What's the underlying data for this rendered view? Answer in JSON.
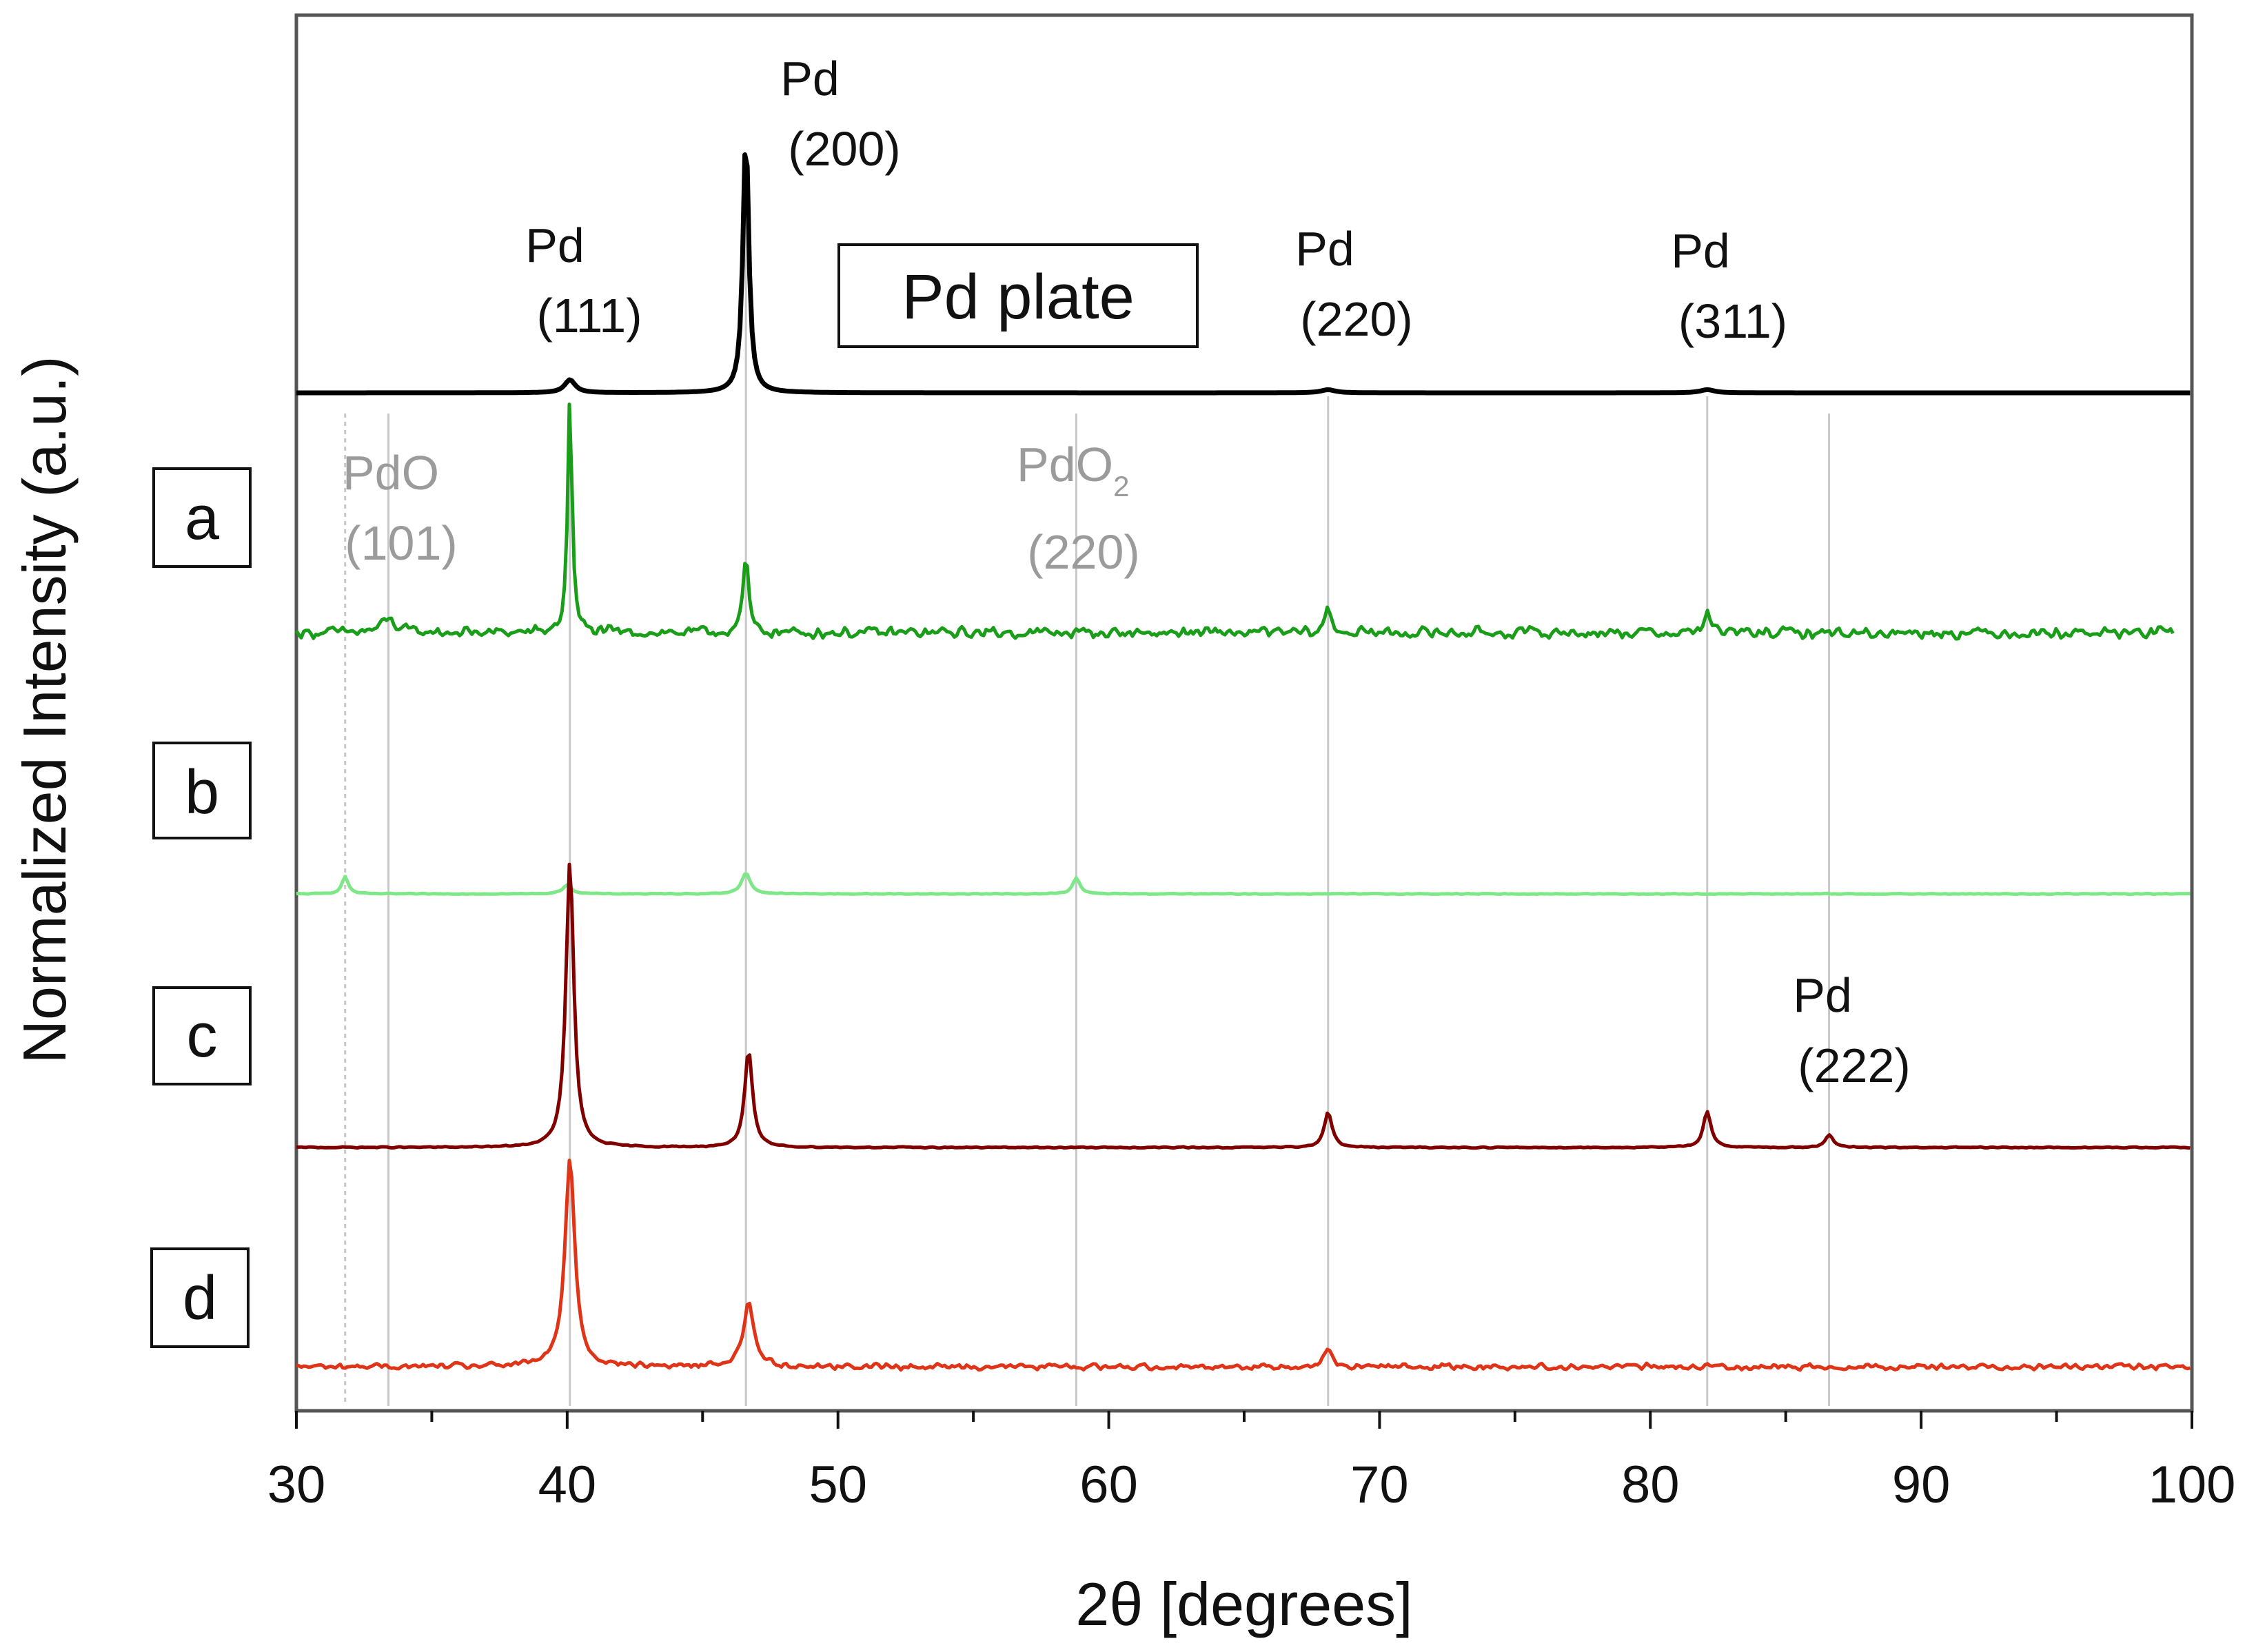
{
  "chart_data": {
    "type": "line",
    "title": "",
    "xlabel": "2θ [degrees]",
    "ylabel": "Normalized Intensity (a.u.)",
    "xlim": [
      30,
      100
    ],
    "xticks": [
      30,
      40,
      50,
      60,
      70,
      80,
      90,
      100
    ],
    "xtick_labels": [
      "30",
      "40",
      "50",
      "60",
      "70",
      "80",
      "90",
      "100"
    ],
    "grid": false,
    "reference_lines": [
      {
        "x": 31.8,
        "style": "dotted"
      },
      {
        "x": 33.4,
        "style": "solid"
      },
      {
        "x": 40.1,
        "style": "solid"
      },
      {
        "x": 46.6,
        "style": "solid"
      },
      {
        "x": 58.8,
        "style": "solid"
      },
      {
        "x": 68.1,
        "style": "solid"
      },
      {
        "x": 82.1,
        "style": "solid"
      },
      {
        "x": 86.6,
        "style": "solid"
      }
    ],
    "series": [
      {
        "name": "Pd plate",
        "color": "#000000",
        "baseline": 0.74,
        "x_range": [
          30,
          100
        ],
        "noise": 0,
        "peaks": [
          {
            "x": 40.1,
            "height": 0.025,
            "width": 0.3
          },
          {
            "x": 46.6,
            "height": 0.5,
            "width": 0.16
          },
          {
            "x": 68.1,
            "height": 0.006,
            "width": 0.4
          },
          {
            "x": 82.1,
            "height": 0.006,
            "width": 0.4
          }
        ]
      },
      {
        "name": "a",
        "color": "#1a9e1a",
        "baseline": 0.465,
        "x_range": [
          30,
          99.3
        ],
        "noise": 0.012,
        "peaks": [
          {
            "x": 33.4,
            "height": 0.025,
            "width": 0.4
          },
          {
            "x": 40.1,
            "height": 0.45,
            "width": 0.12
          },
          {
            "x": 46.6,
            "height": 0.14,
            "width": 0.15
          },
          {
            "x": 68.1,
            "height": 0.05,
            "width": 0.15
          },
          {
            "x": 82.1,
            "height": 0.045,
            "width": 0.15
          }
        ]
      },
      {
        "name": "b",
        "color": "#7ee787",
        "baseline": 0.0,
        "x_range": [
          30,
          100
        ],
        "noise": 0.001,
        "peaks": [
          {
            "x": 31.8,
            "height": 0.038,
            "width": 0.18
          },
          {
            "x": 40.0,
            "height": 0.02,
            "width": 0.25
          },
          {
            "x": 46.6,
            "height": 0.045,
            "width": 0.25
          },
          {
            "x": 58.8,
            "height": 0.035,
            "width": 0.2
          }
        ]
      },
      {
        "name": "c",
        "color": "#800000",
        "baseline": 0.0,
        "x_range": [
          30,
          100
        ],
        "noise": 0.002,
        "peaks": [
          {
            "x": 40.1,
            "height": 0.8,
            "width": 0.22
          },
          {
            "x": 46.7,
            "height": 0.27,
            "width": 0.22
          },
          {
            "x": 68.1,
            "height": 0.1,
            "width": 0.22
          },
          {
            "x": 82.1,
            "height": 0.1,
            "width": 0.22
          },
          {
            "x": 86.6,
            "height": 0.035,
            "width": 0.22
          }
        ]
      },
      {
        "name": "d",
        "color": "#e03418",
        "baseline": 0.0,
        "x_range": [
          30,
          100
        ],
        "noise": 0.012,
        "peaks": [
          {
            "x": 40.1,
            "height": 0.72,
            "width": 0.28
          },
          {
            "x": 46.7,
            "height": 0.22,
            "width": 0.3
          },
          {
            "x": 68.1,
            "height": 0.07,
            "width": 0.2
          }
        ]
      }
    ],
    "sample_labels": [
      "a",
      "b",
      "c",
      "d"
    ],
    "inset_label": "Pd plate",
    "annotations": [
      {
        "phase": "Pd",
        "hkl": "(111)",
        "color": "#000000"
      },
      {
        "phase": "Pd",
        "hkl": "(200)",
        "color": "#000000"
      },
      {
        "phase": "Pd",
        "hkl": "(220)",
        "color": "#000000"
      },
      {
        "phase": "Pd",
        "hkl": "(311)",
        "color": "#000000"
      },
      {
        "phase": "Pd",
        "hkl": "(222)",
        "color": "#000000"
      },
      {
        "phase": "PdO",
        "hkl": "(101)",
        "color": "#9b9b9b"
      },
      {
        "phase": "PdO",
        "sub": "2",
        "hkl": "(220)",
        "color": "#9b9b9b"
      }
    ]
  }
}
